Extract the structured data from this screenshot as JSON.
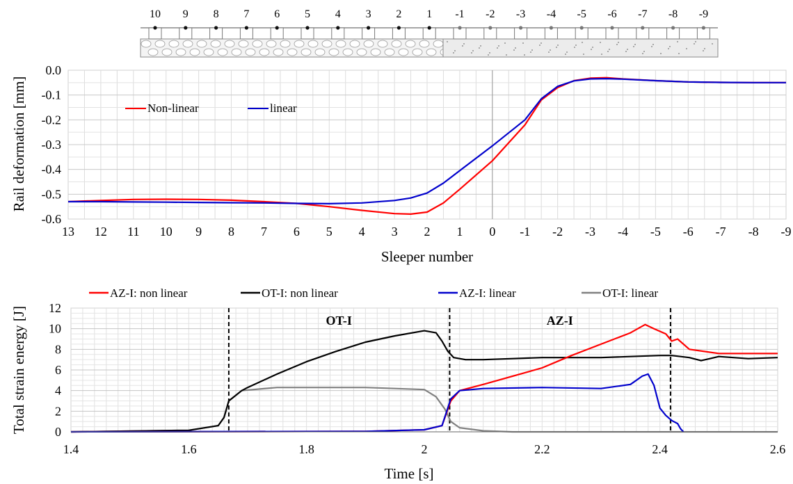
{
  "chart_data": [
    {
      "type": "diagram",
      "sleeper_labels": [
        "10",
        "9",
        "8",
        "7",
        "6",
        "5",
        "4",
        "3",
        "2",
        "1",
        "-1",
        "-2",
        "-3",
        "-4",
        "-5",
        "-6",
        "-7",
        "-8",
        "-9"
      ],
      "left_section": "ballast",
      "right_section": "concrete slab",
      "colors": {
        "left_dots": "#111111",
        "right_dots": "#777777",
        "line": "#888888"
      }
    },
    {
      "type": "line",
      "xlabel": "Sleeper number",
      "ylabel": "Rail deformation [mm]",
      "x_ticks": [
        "13",
        "12",
        "11",
        "10",
        "9",
        "8",
        "7",
        "6",
        "5",
        "4",
        "3",
        "2",
        "1",
        "0",
        "-1",
        "-2",
        "-3",
        "-4",
        "-5",
        "-6",
        "-7",
        "-8",
        "-9"
      ],
      "x_domain": [
        13,
        -9
      ],
      "ylim": [
        -0.6,
        0.0
      ],
      "y_ticks": [
        "0.0",
        "-0.1",
        "-0.2",
        "-0.3",
        "-0.4",
        "-0.5",
        "-0.6"
      ],
      "grid": true,
      "legend_position": "top-left",
      "series": [
        {
          "name": "Non-linear",
          "color": "#ff0000",
          "x": [
            13,
            12,
            11,
            10,
            9,
            8,
            7,
            6,
            5,
            4,
            3,
            2.5,
            2,
            1.5,
            1,
            0,
            -1,
            -1.5,
            -2,
            -2.5,
            -3,
            -3.5,
            -4,
            -5,
            -6,
            -7,
            -8,
            -9
          ],
          "y": [
            -0.53,
            -0.525,
            -0.521,
            -0.52,
            -0.521,
            -0.524,
            -0.53,
            -0.537,
            -0.55,
            -0.565,
            -0.578,
            -0.58,
            -0.572,
            -0.535,
            -0.48,
            -0.365,
            -0.22,
            -0.12,
            -0.07,
            -0.042,
            -0.032,
            -0.03,
            -0.035,
            -0.042,
            -0.047,
            -0.049,
            -0.05,
            -0.05
          ]
        },
        {
          "name": "linear",
          "color": "#0000cc",
          "x": [
            13,
            12,
            11,
            10,
            9,
            8,
            7,
            6,
            5,
            4,
            3,
            2.5,
            2,
            1.5,
            1,
            0,
            -1,
            -1.5,
            -2,
            -2.5,
            -3,
            -3.5,
            -4,
            -5,
            -6,
            -7,
            -8,
            -9
          ],
          "y": [
            -0.53,
            -0.53,
            -0.531,
            -0.532,
            -0.533,
            -0.534,
            -0.535,
            -0.537,
            -0.538,
            -0.535,
            -0.525,
            -0.515,
            -0.495,
            -0.455,
            -0.405,
            -0.305,
            -0.2,
            -0.115,
            -0.065,
            -0.043,
            -0.035,
            -0.034,
            -0.036,
            -0.042,
            -0.047,
            -0.049,
            -0.05,
            -0.05
          ]
        }
      ]
    },
    {
      "type": "line",
      "xlabel": "Time [s]",
      "ylabel": "Total strain energy [J]",
      "xlim": [
        1.4,
        2.6
      ],
      "ylim": [
        0,
        12
      ],
      "x_ticks": [
        "1.4",
        "1.6",
        "1.8",
        "2",
        "2.2",
        "2.4",
        "2.6"
      ],
      "y_ticks": [
        "0",
        "2",
        "4",
        "6",
        "8",
        "10",
        "12"
      ],
      "grid": true,
      "legend_position": "top",
      "vlines": [
        1.668,
        2.043,
        2.418
      ],
      "annotations": [
        {
          "text": "OT-I",
          "x": 1.855,
          "y": 10.8
        },
        {
          "text": "AZ-I",
          "x": 2.23,
          "y": 10.8
        }
      ],
      "series": [
        {
          "name": "AZ-I: non linear",
          "color": "#ff0000",
          "x": [
            1.4,
            1.9,
            2.0,
            2.03,
            2.045,
            2.06,
            2.1,
            2.15,
            2.2,
            2.25,
            2.3,
            2.35,
            2.375,
            2.39,
            2.41,
            2.42,
            2.43,
            2.45,
            2.5,
            2.55,
            2.6
          ],
          "y": [
            0,
            0.05,
            0.2,
            0.6,
            3.0,
            4.0,
            4.6,
            5.4,
            6.2,
            7.4,
            8.5,
            9.6,
            10.4,
            10.0,
            9.5,
            8.8,
            9.0,
            8.0,
            7.6,
            7.6,
            7.6
          ]
        },
        {
          "name": "OT-I: non linear",
          "color": "#000000",
          "x": [
            1.4,
            1.6,
            1.65,
            1.66,
            1.668,
            1.69,
            1.7,
            1.75,
            1.8,
            1.85,
            1.9,
            1.95,
            2.0,
            2.02,
            2.03,
            2.04,
            2.05,
            2.07,
            2.1,
            2.15,
            2.2,
            2.3,
            2.35,
            2.4,
            2.42,
            2.45,
            2.47,
            2.5,
            2.55,
            2.6
          ],
          "y": [
            0,
            0.15,
            0.6,
            1.4,
            3.0,
            4.0,
            4.3,
            5.6,
            6.8,
            7.8,
            8.7,
            9.3,
            9.8,
            9.6,
            8.8,
            7.8,
            7.2,
            7.0,
            7.0,
            7.1,
            7.2,
            7.2,
            7.3,
            7.4,
            7.4,
            7.2,
            6.9,
            7.3,
            7.1,
            7.2
          ]
        },
        {
          "name": "AZ-I: linear",
          "color": "#0000cc",
          "x": [
            1.4,
            1.9,
            2.0,
            2.03,
            2.045,
            2.06,
            2.1,
            2.2,
            2.3,
            2.35,
            2.37,
            2.38,
            2.39,
            2.4,
            2.41,
            2.42,
            2.43,
            2.435,
            2.44
          ],
          "y": [
            0,
            0.05,
            0.2,
            0.6,
            3.2,
            4.0,
            4.2,
            4.3,
            4.2,
            4.6,
            5.4,
            5.6,
            4.5,
            2.3,
            1.6,
            1.1,
            0.8,
            0.3,
            0
          ]
        },
        {
          "name": "OT-I: linear",
          "color": "#808080",
          "x": [
            1.4,
            1.6,
            1.65,
            1.66,
            1.668,
            1.69,
            1.75,
            1.8,
            1.9,
            2.0,
            2.02,
            2.035,
            2.045,
            2.06,
            2.1,
            2.15,
            2.6
          ],
          "y": [
            0,
            0.15,
            0.6,
            1.4,
            3.0,
            4.0,
            4.3,
            4.3,
            4.3,
            4.1,
            3.4,
            2.2,
            1.0,
            0.4,
            0.1,
            0,
            0
          ]
        }
      ]
    }
  ]
}
